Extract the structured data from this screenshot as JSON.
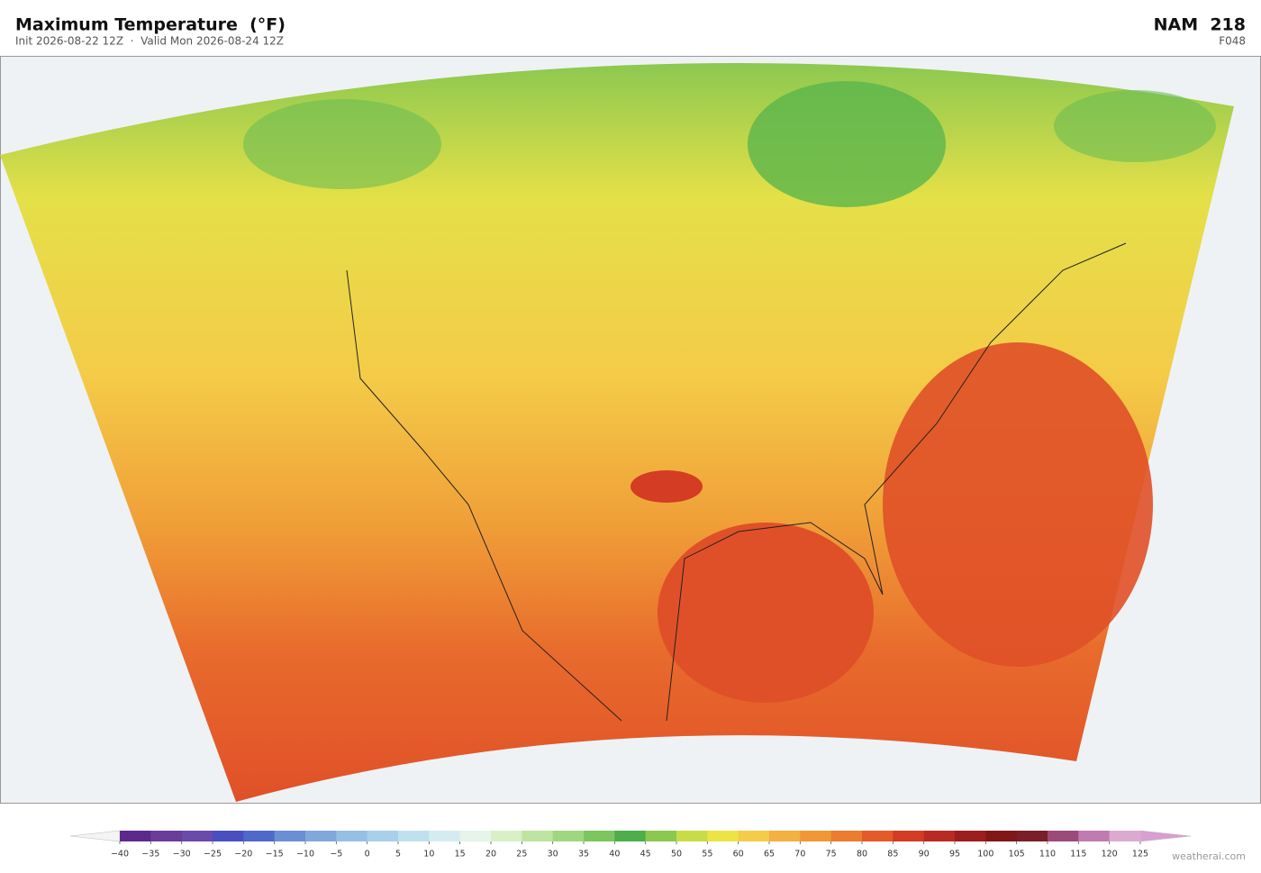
{
  "header": {
    "title": "Maximum Temperature  (°F)",
    "subtitle": "Init 2026-08-22 12Z  ·  Valid Mon 2026-08-24 12Z",
    "model": "NAM  218",
    "forecast_hour": "F048"
  },
  "colorbar": {
    "ticks": [
      {
        "value": -40,
        "label": "−40"
      },
      {
        "value": -35,
        "label": "−35"
      },
      {
        "value": -30,
        "label": "−30"
      },
      {
        "value": -25,
        "label": "−25"
      },
      {
        "value": -20,
        "label": "−20"
      },
      {
        "value": -15,
        "label": "−15"
      },
      {
        "value": -10,
        "label": "−10"
      },
      {
        "value": -5,
        "label": "−5"
      },
      0,
      5,
      10,
      15,
      20,
      25,
      30,
      35,
      40,
      45,
      50,
      55,
      60,
      65,
      70,
      75,
      80,
      85,
      90,
      95,
      100,
      105,
      110,
      115,
      120,
      125
    ],
    "colors": [
      "#5b2a8c",
      "#6b3d9a",
      "#6a4aaa",
      "#4a4fbf",
      "#5068c8",
      "#6a8fd4",
      "#80a8dc",
      "#95c0e4",
      "#a8d0ea",
      "#c0e0ee",
      "#d4ecf0",
      "#e6f4ea",
      "#d8efc8",
      "#bfe3a0",
      "#a0d680",
      "#7cc660",
      "#4caf4a",
      "#8cc850",
      "#c8dc48",
      "#ece444",
      "#f4cc48",
      "#f4b040",
      "#f09838",
      "#ec7c30",
      "#e45a28",
      "#d43c24",
      "#b82a22",
      "#9c1e1e",
      "#801818",
      "#7a1e2a",
      "#9c4a7a",
      "#c07cb0",
      "#dcaad0"
    ],
    "extend_colors": [
      "#f4f4f4",
      "#d8a0d0"
    ]
  },
  "credit": "weatherai.com"
}
